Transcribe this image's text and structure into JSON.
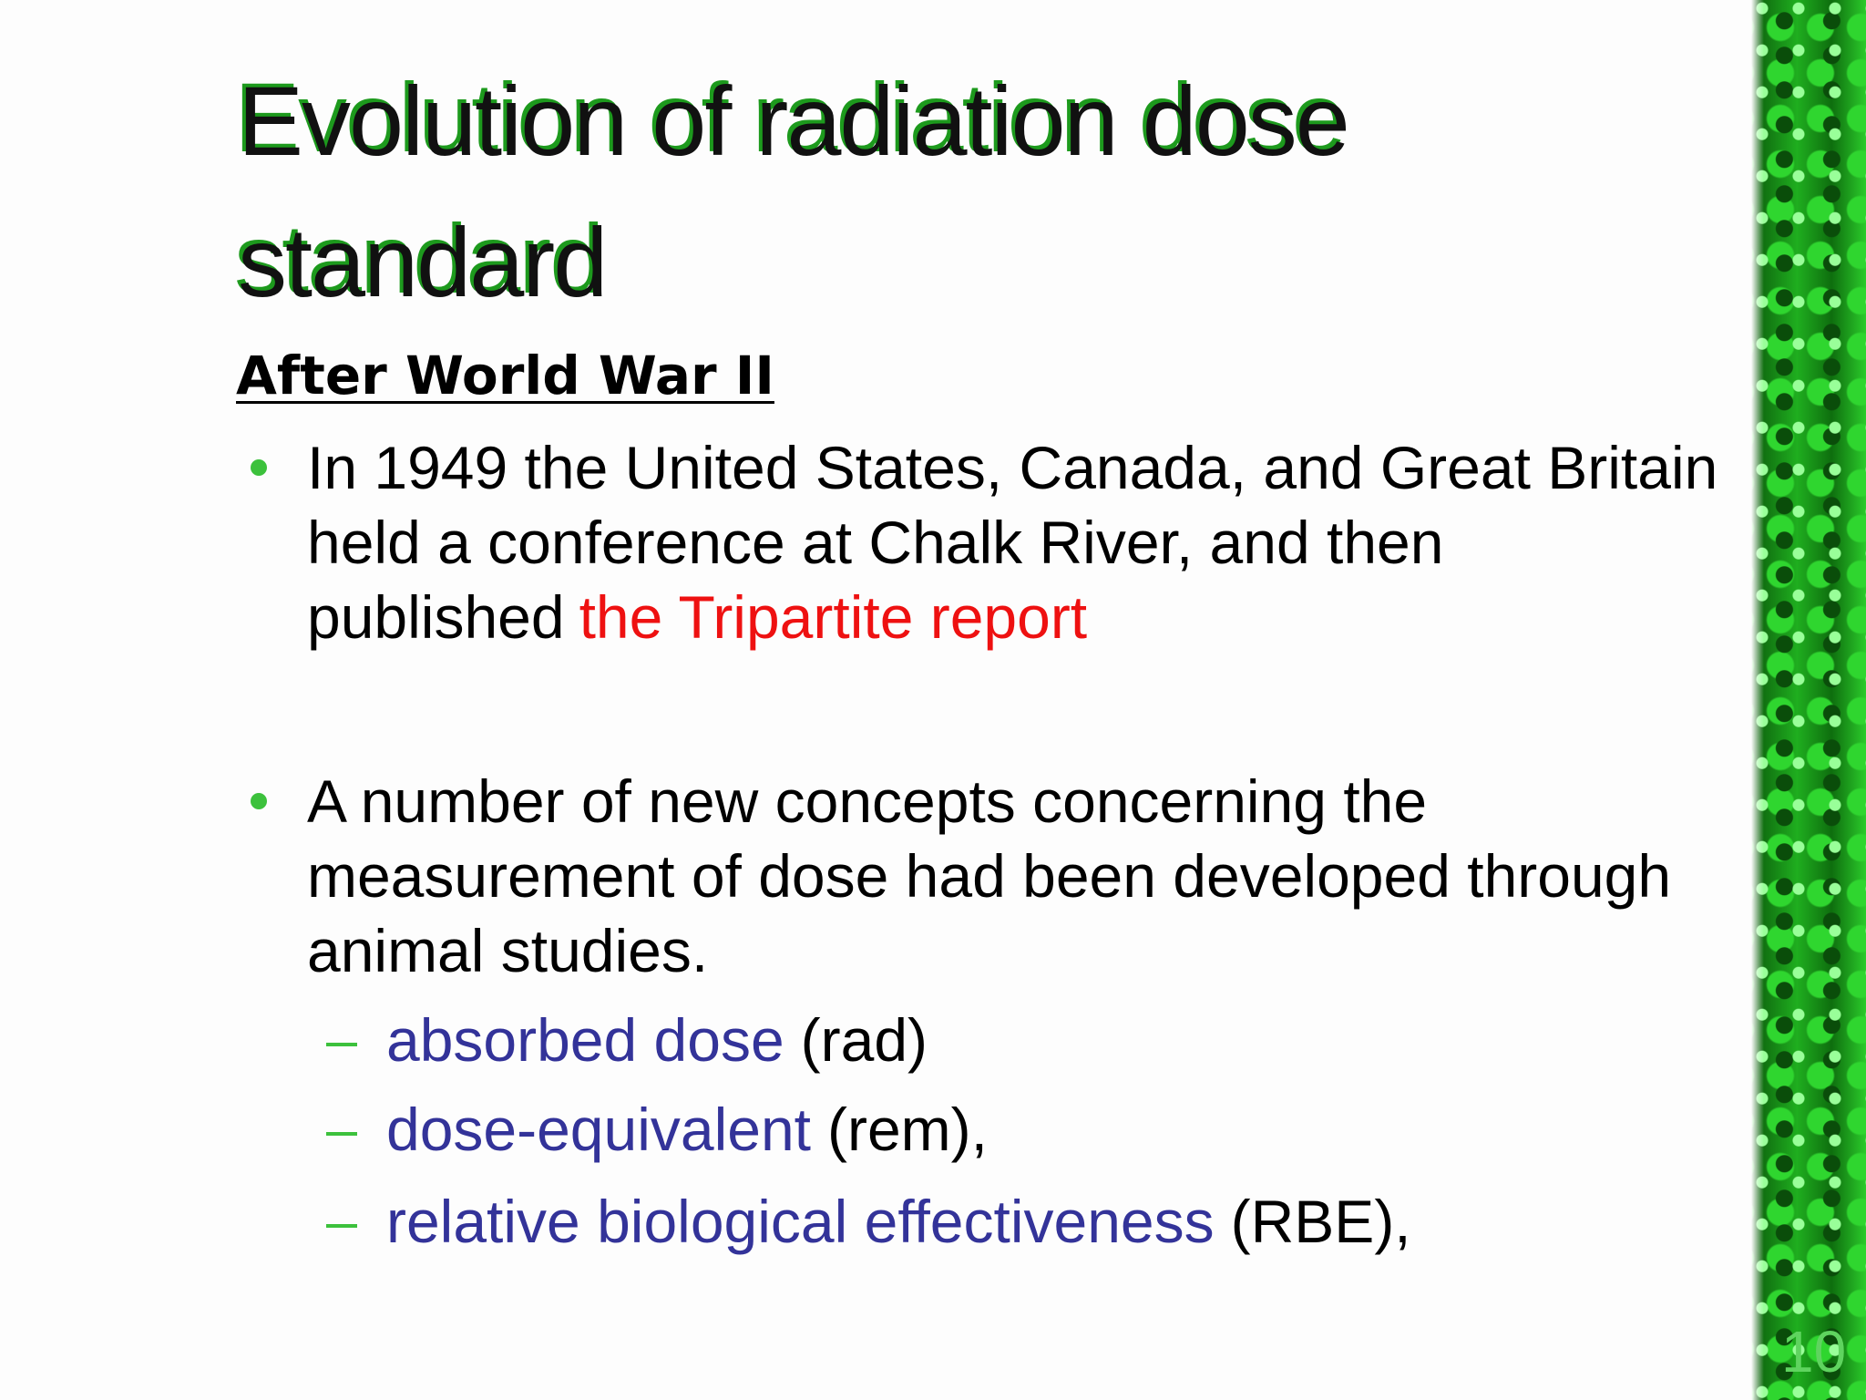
{
  "title": "Evolution of radiation dose standard",
  "heading": "After World War II",
  "bullets": [
    {
      "text": "In 1949 the United States, Canada, and Great Britain held a conference at Chalk River, and then published",
      "highlight": "the Tripartite report"
    },
    {
      "text": "A number of new concepts concerning the measurement of dose had been developed through animal studies.",
      "subitems": [
        {
          "term": "absorbed dose",
          "unit": "(rad)"
        },
        {
          "term": "dose-equivalent",
          "unit": "(rem),"
        },
        {
          "term": "relative biological effectiveness",
          "unit": "(RBE),"
        }
      ]
    }
  ],
  "page_number": 10
}
